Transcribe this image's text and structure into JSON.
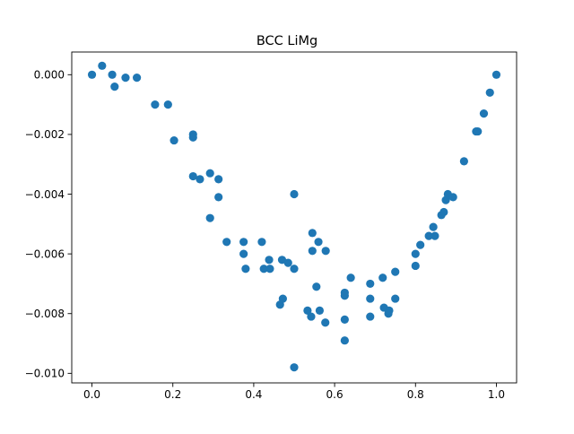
{
  "chart_data": {
    "type": "scatter",
    "title": "BCC LiMg",
    "xlabel": "",
    "ylabel": "",
    "xlim": [
      -0.05,
      1.05
    ],
    "ylim": [
      -0.01032,
      0.00076
    ],
    "grid": false,
    "xticks": [
      0.0,
      0.2,
      0.4,
      0.6,
      0.8,
      1.0
    ],
    "xtick_labels": [
      "0.0",
      "0.2",
      "0.4",
      "0.6",
      "0.8",
      "1.0"
    ],
    "yticks": [
      0.0,
      -0.002,
      -0.004,
      -0.006,
      -0.008,
      -0.01
    ],
    "ytick_labels": [
      "0.000",
      "−0.002",
      "−0.004",
      "−0.006",
      "−0.008",
      "−0.010"
    ],
    "marker_color": "#1f77b4",
    "points": [
      [
        0.0,
        0.0
      ],
      [
        0.025,
        0.0003
      ],
      [
        0.05,
        0.0
      ],
      [
        0.056,
        -0.0004
      ],
      [
        0.083,
        -0.0001
      ],
      [
        0.111,
        -0.0001
      ],
      [
        0.156,
        -0.001
      ],
      [
        0.188,
        -0.001
      ],
      [
        0.203,
        -0.0022
      ],
      [
        0.25,
        -0.002
      ],
      [
        0.25,
        -0.0021
      ],
      [
        0.25,
        -0.0034
      ],
      [
        0.267,
        -0.0035
      ],
      [
        0.292,
        -0.0033
      ],
      [
        0.292,
        -0.0048
      ],
      [
        0.313,
        -0.0035
      ],
      [
        0.313,
        -0.0041
      ],
      [
        0.333,
        -0.0056
      ],
      [
        0.375,
        -0.0056
      ],
      [
        0.375,
        -0.006
      ],
      [
        0.38,
        -0.0065
      ],
      [
        0.42,
        -0.0056
      ],
      [
        0.425,
        -0.0065
      ],
      [
        0.438,
        -0.0062
      ],
      [
        0.44,
        -0.0065
      ],
      [
        0.465,
        -0.0077
      ],
      [
        0.47,
        -0.0062
      ],
      [
        0.472,
        -0.0075
      ],
      [
        0.485,
        -0.0063
      ],
      [
        0.5,
        -0.004
      ],
      [
        0.5,
        -0.0065
      ],
      [
        0.5,
        -0.0098
      ],
      [
        0.533,
        -0.0079
      ],
      [
        0.542,
        -0.0081
      ],
      [
        0.545,
        -0.0059
      ],
      [
        0.545,
        -0.0053
      ],
      [
        0.555,
        -0.0071
      ],
      [
        0.56,
        -0.0056
      ],
      [
        0.563,
        -0.0079
      ],
      [
        0.577,
        -0.0083
      ],
      [
        0.578,
        -0.0059
      ],
      [
        0.625,
        -0.0089
      ],
      [
        0.625,
        -0.0082
      ],
      [
        0.625,
        -0.0073
      ],
      [
        0.625,
        -0.0074
      ],
      [
        0.64,
        -0.0068
      ],
      [
        0.688,
        -0.007
      ],
      [
        0.688,
        -0.0075
      ],
      [
        0.688,
        -0.0081
      ],
      [
        0.719,
        -0.0068
      ],
      [
        0.722,
        -0.0078
      ],
      [
        0.733,
        -0.008
      ],
      [
        0.735,
        -0.0079
      ],
      [
        0.75,
        -0.0066
      ],
      [
        0.75,
        -0.0075
      ],
      [
        0.8,
        -0.0064
      ],
      [
        0.8,
        -0.006
      ],
      [
        0.812,
        -0.0057
      ],
      [
        0.833,
        -0.0054
      ],
      [
        0.844,
        -0.0051
      ],
      [
        0.848,
        -0.0054
      ],
      [
        0.864,
        -0.0047
      ],
      [
        0.87,
        -0.0046
      ],
      [
        0.875,
        -0.0042
      ],
      [
        0.88,
        -0.004
      ],
      [
        0.893,
        -0.0041
      ],
      [
        0.92,
        -0.0029
      ],
      [
        0.95,
        -0.0019
      ],
      [
        0.954,
        -0.0019
      ],
      [
        0.969,
        -0.0013
      ],
      [
        0.984,
        -0.0006
      ],
      [
        1.0,
        0.0
      ]
    ]
  }
}
